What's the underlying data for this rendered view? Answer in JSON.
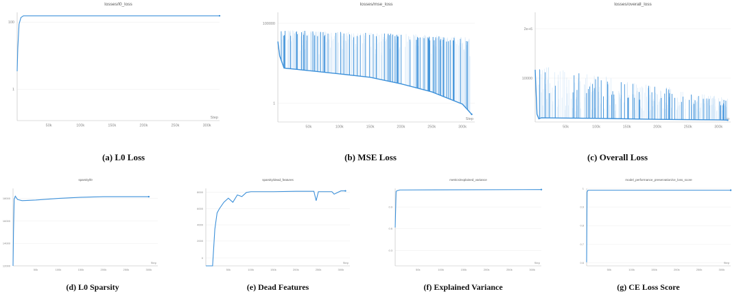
{
  "colors": {
    "line": "#3a8fd9",
    "spike": "#3a8fd9",
    "band": "#cfe4f7",
    "grid": "#ececec",
    "axis": "#bbbbbb"
  },
  "step_label": "Step",
  "captions": [
    "(a) L0 Loss",
    "(b) MSE Loss",
    "(c) Overall Loss",
    "(d) L0 Sparsity",
    "(e) Dead Features",
    "(f) Explained Variance",
    "(g) CE Loss Score"
  ],
  "chart_data": [
    {
      "id": "a",
      "type": "line",
      "title": "losses/l0_loss",
      "xlabel": "Step",
      "x_ticks": [
        "50k",
        "100k",
        "150k",
        "200k",
        "250k",
        "300k"
      ],
      "xlim": [
        0,
        320000
      ],
      "y_scale": "log",
      "y_ticks": [
        "100",
        "1"
      ],
      "ylim": [
        0.05,
        400
      ],
      "series": [
        {
          "x": [
            0,
            1000,
            3000,
            6000,
            10000,
            15000,
            320000
          ],
          "y": [
            3,
            20,
            150,
            260,
            300,
            300,
            300
          ]
        }
      ]
    },
    {
      "id": "b",
      "type": "line",
      "title": "losses/mse_loss",
      "xlabel": "Step",
      "x_ticks": [
        "50k",
        "100k",
        "150k",
        "200k",
        "250k",
        "300k"
      ],
      "xlim": [
        0,
        320000
      ],
      "y_scale": "log",
      "y_ticks": [
        "100000",
        "1"
      ],
      "ylim": [
        0.06,
        2000000
      ],
      "series": [
        {
          "x": [
            0,
            3000,
            10000,
            50000,
            100000,
            150000,
            200000,
            250000,
            300000,
            315000
          ],
          "y": [
            20000,
            2000,
            300,
            200,
            120,
            70,
            25,
            7,
            1,
            0.2
          ]
        }
      ],
      "spikes": {
        "x_range": [
          5000,
          315000
        ],
        "count": 70,
        "peak_range": [
          600,
          120000
        ]
      }
    },
    {
      "id": "c",
      "type": "line",
      "title": "losses/overall_loss",
      "xlabel": "Step",
      "x_ticks": [
        "50k",
        "100k",
        "150k",
        "200k",
        "250k",
        "300k"
      ],
      "xlim": [
        0,
        320000
      ],
      "y_scale": "linear",
      "y_ticks": [
        "2e+6",
        "10000"
      ],
      "ylim": [
        0,
        2100000
      ],
      "series": [
        {
          "x": [
            0,
            3000,
            6000,
            10000,
            50000,
            100000,
            150000,
            200000,
            250000,
            300000,
            315000
          ],
          "y": [
            1000000,
            150000,
            60000,
            80000,
            75000,
            70000,
            60000,
            50000,
            45000,
            40000,
            35000
          ]
        }
      ],
      "spikes": {
        "x_range": [
          5000,
          315000
        ],
        "count": 60,
        "peak_range": [
          200000,
          1100000
        ]
      }
    },
    {
      "id": "d",
      "type": "line",
      "title": "sparsity/l0",
      "xlabel": "Step",
      "x_ticks": [
        "50k",
        "100k",
        "150k",
        "200k",
        "250k",
        "300k"
      ],
      "xlim": [
        0,
        320000
      ],
      "y_scale": "linear",
      "y_ticks": [
        "18000",
        "16000",
        "14000",
        "12000"
      ],
      "ylim": [
        12000,
        19000
      ],
      "series": [
        {
          "x": [
            0,
            1000,
            2500,
            5000,
            10000,
            20000,
            50000,
            100000,
            150000,
            200000,
            300000
          ],
          "y": [
            12000,
            15000,
            18000,
            18300,
            18000,
            17900,
            17950,
            18100,
            18200,
            18250,
            18250
          ]
        }
      ]
    },
    {
      "id": "e",
      "type": "line",
      "title": "sparsity/dead_features",
      "xlabel": "Step",
      "x_ticks": [
        "50k",
        "100k",
        "150k",
        "200k",
        "250k",
        "300k"
      ],
      "xlim": [
        0,
        320000
      ],
      "y_scale": "linear",
      "y_ticks": [
        "8000",
        "6000",
        "4000",
        "2000",
        "0"
      ],
      "ylim": [
        0,
        9500
      ],
      "series": [
        {
          "x": [
            0,
            15000,
            20000,
            25000,
            30000,
            40000,
            50000,
            60000,
            70000,
            80000,
            90000,
            100000,
            150000,
            200000,
            240000,
            245000,
            250000,
            280000,
            285000,
            300000,
            310000
          ],
          "y": [
            0,
            0,
            4500,
            6500,
            7000,
            7800,
            8300,
            7800,
            8700,
            8500,
            9000,
            9100,
            9100,
            9150,
            9150,
            8000,
            9100,
            9100,
            8800,
            9200,
            9200
          ]
        }
      ]
    },
    {
      "id": "f",
      "type": "line",
      "title": "metrics/explained_variance",
      "xlabel": "Step",
      "x_ticks": [
        "50k",
        "100k",
        "150k",
        "200k",
        "250k",
        "300k"
      ],
      "xlim": [
        0,
        320000
      ],
      "y_scale": "linear",
      "y_ticks": [
        "0.9",
        "0.6",
        "0.3"
      ],
      "ylim": [
        0,
        1.01
      ],
      "series": [
        {
          "x": [
            0,
            2000,
            4000,
            10000,
            320000
          ],
          "y": [
            0.5,
            0.97,
            0.98,
            0.99,
            0.995
          ]
        }
      ]
    },
    {
      "id": "g",
      "type": "line",
      "title": "model_performance_preservation/ce_loss_score",
      "xlabel": "Step",
      "x_ticks": [
        "50k",
        "100k",
        "150k",
        "200k",
        "250k",
        "300k"
      ],
      "xlim": [
        0,
        320000
      ],
      "y_scale": "linear",
      "y_ticks": [
        "1",
        "0.9",
        "0.8",
        "0.7",
        "0.6"
      ],
      "ylim": [
        0.58,
        1.01
      ],
      "series": [
        {
          "x": [
            0,
            1000,
            3000,
            320000
          ],
          "y": [
            0.6,
            0.99,
            1.0,
            1.0
          ]
        }
      ]
    }
  ]
}
